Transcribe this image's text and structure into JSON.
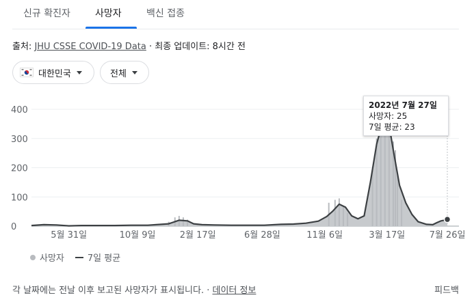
{
  "tabs": [
    {
      "label": "신규 확진자",
      "active": false
    },
    {
      "label": "사망자",
      "active": true
    },
    {
      "label": "백신 접종",
      "active": false
    }
  ],
  "source": {
    "prefix": "출처: ",
    "link": "JHU CSSE COVID-19 Data",
    "suffix": " · 최종 업데이트: 8시간 전"
  },
  "filters": {
    "region": "대한민국",
    "range": "전체"
  },
  "tooltip": {
    "title": "2022년 7월 27일",
    "deaths_line": "사망자: 25",
    "avg_line": "7일 평균: 23"
  },
  "legend": {
    "deaths": "사망자",
    "avg": "7일 평균"
  },
  "footer": {
    "text": "각 날짜에는 전날 이후 보고된 사망자가 표시됩니다. · ",
    "link": "데이터 정보",
    "feedback": "피드백"
  },
  "colors": {
    "accent": "#1a73e8",
    "bar": "#b8bbbf",
    "avg_line": "#3c4043",
    "area": "#c7cacd"
  },
  "chart_data": {
    "type": "area",
    "title": "",
    "xlabel": "",
    "ylabel": "",
    "ylim": [
      0,
      400
    ],
    "yticks": [
      "400",
      "300",
      "200",
      "100",
      "0"
    ],
    "ytick_values": [
      400,
      300,
      200,
      100,
      0
    ],
    "xticks": [
      "5월 31일",
      "10월 9일",
      "2월 17일",
      "6월 28일",
      "11월 6일",
      "3월 17일",
      "7월 26일"
    ],
    "xtick_positions": [
      0.09,
      0.255,
      0.4,
      0.555,
      0.705,
      0.855,
      1.0
    ],
    "series": [
      {
        "name": "7일 평균",
        "type": "line",
        "points": [
          [
            0.0,
            2
          ],
          [
            0.03,
            5
          ],
          [
            0.06,
            4
          ],
          [
            0.09,
            1
          ],
          [
            0.12,
            2
          ],
          [
            0.16,
            2
          ],
          [
            0.2,
            2
          ],
          [
            0.24,
            3
          ],
          [
            0.28,
            3
          ],
          [
            0.3,
            5
          ],
          [
            0.33,
            8
          ],
          [
            0.355,
            20
          ],
          [
            0.375,
            18
          ],
          [
            0.39,
            8
          ],
          [
            0.41,
            5
          ],
          [
            0.44,
            4
          ],
          [
            0.48,
            3
          ],
          [
            0.52,
            3
          ],
          [
            0.56,
            3
          ],
          [
            0.6,
            6
          ],
          [
            0.63,
            7
          ],
          [
            0.66,
            10
          ],
          [
            0.69,
            17
          ],
          [
            0.71,
            33
          ],
          [
            0.725,
            52
          ],
          [
            0.74,
            75
          ],
          [
            0.755,
            65
          ],
          [
            0.77,
            35
          ],
          [
            0.785,
            25
          ],
          [
            0.8,
            35
          ],
          [
            0.815,
            150
          ],
          [
            0.83,
            280
          ],
          [
            0.845,
            360
          ],
          [
            0.86,
            345
          ],
          [
            0.87,
            260
          ],
          [
            0.885,
            140
          ],
          [
            0.9,
            80
          ],
          [
            0.915,
            40
          ],
          [
            0.93,
            15
          ],
          [
            0.95,
            6
          ],
          [
            0.965,
            5
          ],
          [
            0.975,
            12
          ],
          [
            0.985,
            18
          ],
          [
            0.992,
            20
          ],
          [
            1.0,
            23
          ]
        ]
      },
      {
        "name": "사망자",
        "type": "bar",
        "points": [
          [
            0.33,
            15
          ],
          [
            0.345,
            30
          ],
          [
            0.355,
            35
          ],
          [
            0.365,
            30
          ],
          [
            0.375,
            22
          ],
          [
            0.715,
            80
          ],
          [
            0.73,
            90
          ],
          [
            0.74,
            95
          ],
          [
            0.75,
            70
          ],
          [
            0.76,
            45
          ],
          [
            0.82,
            190
          ],
          [
            0.83,
            300
          ],
          [
            0.84,
            380
          ],
          [
            0.85,
            400
          ],
          [
            0.86,
            330
          ],
          [
            0.87,
            290
          ],
          [
            0.875,
            260
          ],
          [
            0.88,
            170
          ],
          [
            0.89,
            90
          ]
        ]
      }
    ],
    "highlight": {
      "date": "2022년 7월 27일",
      "deaths": 25,
      "avg": 23
    },
    "grid": true,
    "legend_position": "bottom-left"
  }
}
